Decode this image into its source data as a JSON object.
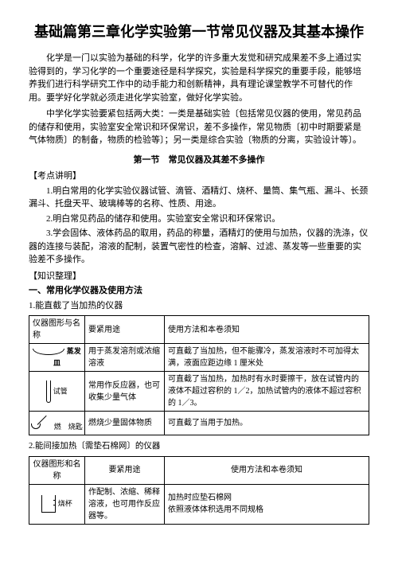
{
  "title": "基础篇第三章化学实验第一节常见仪器及其基本操作",
  "paragraphs": {
    "p1": "化学是一门以实验为基础的科学，化学的许多重大发觉和研究成果差不多上通过实验得到的，学习化学的一个重要途径是科学探究，实验是科学探究的重要手段，能够培养我们进行科学研究工作中的动手能力和创新精神，具有理论课堂教学不可替代的作用。要学好化学就必须走进化学实验室，做好化学实验。",
    "p2": "中学化学实验要紧包括两大类：一类是基础实验〔包括常见仪器的使用，常见药品的储存和使用，实验室安全常识和环保常识，差不多操作，常见物质〔初中时期要紧是气体物质〕的制备，物质的检验等〕；另一类是综合实验〔物质的分离，实验设计等〕。"
  },
  "section1": {
    "title": "第一节　常见仪器及其差不多操作",
    "h1": "【考点讲明】",
    "li1": "1.明白常用的化学实验仪器试管、滴管、酒精灯、烧杯、量筒、集气瓶、漏斗、长颈漏斗、托盘天平、玻璃棒等的名称、性质、用途。",
    "li2": "2.明白常见药品的储存和使用。实验室安全常识和环保常识。",
    "li3": "3.学会固体、液体药品的取用，药品的称量，酒精灯的使用与加热，仪器的洗涤，仪器的连接与装配，溶液的配制，装置气密性的检查，溶解、过滤、蒸发等一些重要的实验差不多操作。",
    "h2": "【知识整理】",
    "h3": "一、常用化学仪器及使用方法",
    "h4": "1.能直截了当加热的仪器"
  },
  "table1": {
    "headers": {
      "c1": "仪器图形与名称",
      "c2": "要紧用途",
      "c3": "使用方法和本卷须知"
    },
    "rows": [
      {
        "name": "蒸发皿",
        "nameBold": true,
        "use": "用于蒸发溶剂或浓缩溶液",
        "note": "可直截了当加热，但不能骤冷，蒸发溶液时不可加得太满，液面应距边缘 1 厘米处"
      },
      {
        "name": "试管",
        "nameBold": false,
        "use": "常用作反应器，也可收集少量气体",
        "note": "可直截了当加热，加热时有水时要擦干，放在试管内的液体不超过容积的 1／2，加热试管内的液体不超过容积的 1／3。"
      },
      {
        "name": "燃　烧匙",
        "nameBold": false,
        "use": "燃烧少量固体物质",
        "note": "可直截了当用于加热。"
      }
    ]
  },
  "table2": {
    "caption": "2.能间接加热〔需垫石棉网〕的仪器",
    "headers": {
      "c1": "仪器图形和名称",
      "c2": "要紧用途",
      "c3": "使用方法和本卷须知"
    },
    "rows": [
      {
        "name": "烧杯",
        "use": "作配制、浓缩、稀释溶液，也可用作反应器等。",
        "note": "加热时应垫石棉网\n依照液体体积选用不同规格"
      }
    ]
  }
}
